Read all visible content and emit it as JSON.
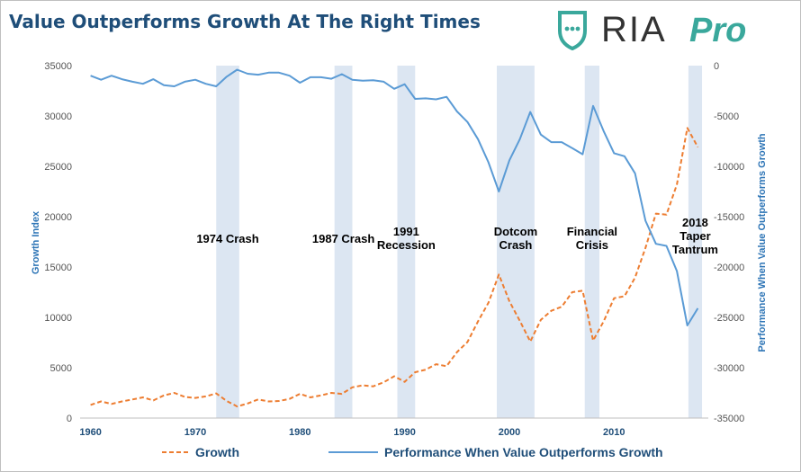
{
  "title": "Value Outperforms Growth At The Right Times",
  "logo": {
    "text_main": "RIA",
    "text_sub": "Pro",
    "icon": "shield-chat-icon"
  },
  "colors": {
    "growth": "#ed7d31",
    "performance": "#5b9bd5",
    "shade": "#dce6f2",
    "title": "#1f4e79"
  },
  "chart_data": {
    "type": "line",
    "x": [
      1960,
      1961,
      1962,
      1963,
      1964,
      1965,
      1966,
      1967,
      1968,
      1969,
      1970,
      1971,
      1972,
      1973,
      1974,
      1975,
      1976,
      1977,
      1978,
      1979,
      1980,
      1981,
      1982,
      1983,
      1984,
      1985,
      1986,
      1987,
      1988,
      1989,
      1990,
      1991,
      1992,
      1993,
      1994,
      1995,
      1996,
      1997,
      1998,
      1999,
      2000,
      2001,
      2002,
      2003,
      2004,
      2005,
      2006,
      2007,
      2008,
      2009,
      2010,
      2011,
      2012,
      2013,
      2014,
      2015,
      2016,
      2017,
      2018
    ],
    "xlim": [
      1959,
      2019
    ],
    "xticks": [
      "1960",
      "1970",
      "1980",
      "1990",
      "2000",
      "2010"
    ],
    "xtick_values": [
      1960,
      1970,
      1980,
      1990,
      2000,
      2010
    ],
    "y_left": {
      "label": "Growth Index",
      "lim": [
        0,
        35000
      ],
      "ticks": [
        "0",
        "5000",
        "10000",
        "15000",
        "20000",
        "25000",
        "30000",
        "35000"
      ],
      "tick_values": [
        0,
        5000,
        10000,
        15000,
        20000,
        25000,
        30000,
        35000
      ]
    },
    "y_right": {
      "label": "Performance When Value Outperforms Growth",
      "lim": [
        -35000,
        0
      ],
      "ticks": [
        "0",
        "-5000",
        "-10000",
        "-15000",
        "-20000",
        "-25000",
        "-30000",
        "-35000"
      ],
      "tick_values": [
        0,
        -5000,
        -10000,
        -15000,
        -20000,
        -25000,
        -30000,
        -35000
      ]
    },
    "series": [
      {
        "name": "Growth",
        "axis": "left",
        "style": "dashed",
        "values": [
          1300,
          1650,
          1400,
          1650,
          1850,
          2050,
          1750,
          2250,
          2500,
          2100,
          2000,
          2150,
          2450,
          1700,
          1150,
          1450,
          1850,
          1650,
          1700,
          1900,
          2400,
          2050,
          2250,
          2500,
          2400,
          3050,
          3250,
          3150,
          3550,
          4150,
          3600,
          4550,
          4800,
          5350,
          5150,
          6550,
          7550,
          9600,
          11450,
          14250,
          11600,
          9650,
          7600,
          9750,
          10650,
          11050,
          12500,
          12650,
          7700,
          9600,
          11900,
          12100,
          13950,
          16900,
          20300,
          20200,
          23200,
          28800,
          26900
        ]
      },
      {
        "name": "Performance When Value Outperforms Growth",
        "axis": "right",
        "style": "solid",
        "values": [
          -1000,
          -1400,
          -1000,
          -1350,
          -1600,
          -1800,
          -1350,
          -1950,
          -2050,
          -1600,
          -1400,
          -1800,
          -2050,
          -1100,
          -400,
          -800,
          -900,
          -700,
          -700,
          -1000,
          -1700,
          -1150,
          -1150,
          -1300,
          -850,
          -1400,
          -1500,
          -1450,
          -1600,
          -2300,
          -1850,
          -3300,
          -3250,
          -3350,
          -3100,
          -4550,
          -5600,
          -7300,
          -9600,
          -12500,
          -9400,
          -7300,
          -4600,
          -6850,
          -7600,
          -7600,
          -8200,
          -8800,
          -4000,
          -6500,
          -8700,
          -9000,
          -10700,
          -15400,
          -17700,
          -17900,
          -20400,
          -25800,
          -24100
        ]
      }
    ],
    "shaded_periods": [
      {
        "start": 1972,
        "end": 1974.2,
        "label": [
          "1974 Crash"
        ]
      },
      {
        "start": 1983.3,
        "end": 1985,
        "label": [
          "1987 Crash"
        ]
      },
      {
        "start": 1989.3,
        "end": 1991,
        "label": [
          "1991",
          "Recession"
        ]
      },
      {
        "start": 1998.8,
        "end": 2002.4,
        "label": [
          "Dotcom",
          "Crash"
        ]
      },
      {
        "start": 2007.2,
        "end": 2008.6,
        "label": [
          "Financial",
          "Crisis"
        ]
      },
      {
        "start": 2017.1,
        "end": 2018.4,
        "label": [
          "2018",
          "Taper",
          "Tantrum"
        ]
      }
    ],
    "legend": {
      "position": "bottom",
      "items": [
        "Growth",
        "Performance When Value Outperforms Growth"
      ]
    }
  }
}
